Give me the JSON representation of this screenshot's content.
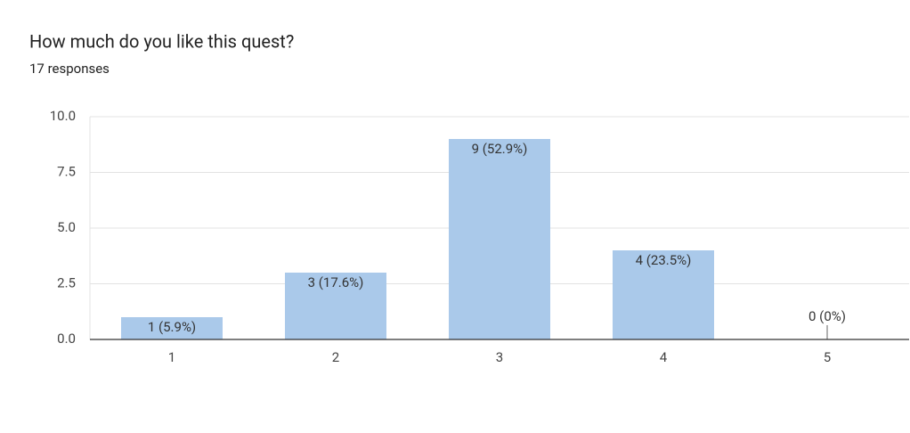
{
  "chart_data": {
    "type": "bar",
    "title": "How much do you like this quest?",
    "subtitle": "17 responses",
    "categories": [
      "1",
      "2",
      "3",
      "4",
      "5"
    ],
    "values": [
      1,
      3,
      9,
      4,
      0
    ],
    "value_labels": [
      "1 (5.9%)",
      "3 (17.6%)",
      "9 (52.9%)",
      "4 (23.5%)",
      "0 (0%)"
    ],
    "color": "#aac9ea",
    "ylim": [
      0,
      10
    ],
    "yticks": [
      {
        "value": 0,
        "label": "0.0"
      },
      2.5,
      {
        "value": 5,
        "label": "5.0"
      },
      7.5,
      {
        "value": 10,
        "label": "10.0"
      }
    ],
    "grid": true
  }
}
